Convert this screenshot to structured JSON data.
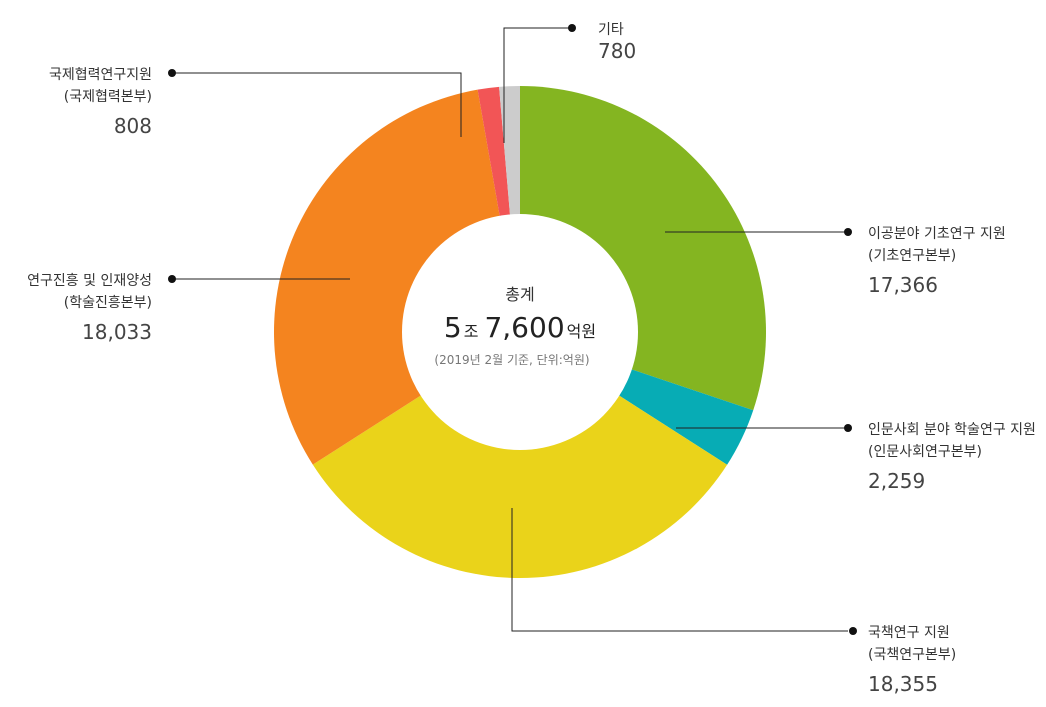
{
  "chart_data": {
    "type": "pie",
    "donut": true,
    "center": {
      "title": "총계",
      "total_num1": "5",
      "total_unit1": "조",
      "total_num2": "7,600",
      "total_unit2": "억원",
      "note": "(2019년 2월 기준, 단위:억원)"
    },
    "slices": [
      {
        "label": "이공분야 기초연구 지원",
        "sub": "(기초연구본부)",
        "value": 17366,
        "value_text": "17,366",
        "color": "#84b521"
      },
      {
        "label": "인문사회 분야 학술연구 지원",
        "sub": "(인문사회연구본부)",
        "value": 2259,
        "value_text": "2,259",
        "color": "#07acb5"
      },
      {
        "label": "국책연구 지원",
        "sub": "(국책연구본부)",
        "value": 18355,
        "value_text": "18,355",
        "color": "#ead31a"
      },
      {
        "label": "연구진흥 및 인재양성",
        "sub": "(학술진흥본부)",
        "value": 18033,
        "value_text": "18,033",
        "color": "#f4841f"
      },
      {
        "label": "국제협력연구지원",
        "sub": "(국제협력본부)",
        "value": 808,
        "value_text": "808",
        "color": "#f25556"
      },
      {
        "label": "기타",
        "sub": "",
        "value": 780,
        "value_text": "780",
        "color": "#cccccc"
      }
    ]
  }
}
